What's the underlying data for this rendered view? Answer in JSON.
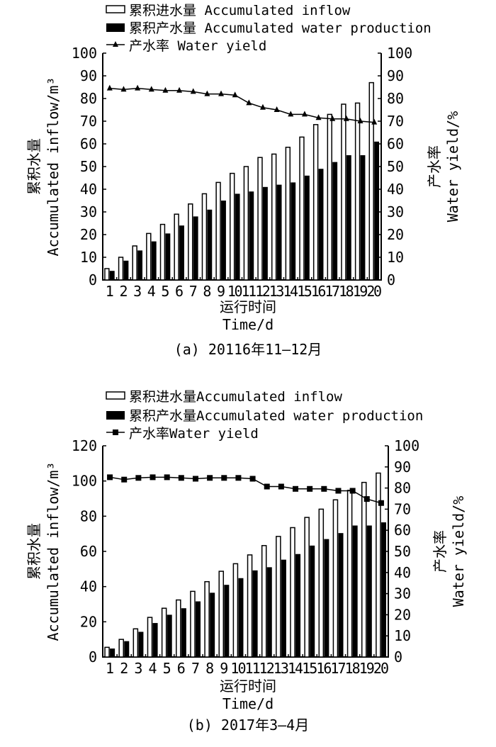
{
  "chart_data": [
    {
      "type": "bar",
      "caption": "(a) 20116年11—12月",
      "legend": [
        "累积进水量 Accumulated inflow",
        "累积产水量 Accumulated water production",
        "产水率 Water yield"
      ],
      "ylabel_cn": "累积水量",
      "ylabel": "Accumulated inflow/m³",
      "y2label_cn": "产水率",
      "y2label": "Water yield/%",
      "xlabel_cn": "运行时间",
      "xlabel": "Time/d",
      "ylim": [
        0,
        100
      ],
      "yticks": [
        "0",
        "10",
        "20",
        "30",
        "40",
        "50",
        "60",
        "70",
        "80",
        "90",
        "100"
      ],
      "y2lim": [
        0,
        100
      ],
      "y2ticks": [
        "0",
        "10",
        "20",
        "30",
        "40",
        "50",
        "60",
        "70",
        "80",
        "90",
        "100"
      ],
      "categories": [
        "1",
        "2",
        "3",
        "4",
        "5",
        "6",
        "7",
        "8",
        "9",
        "10",
        "11",
        "12",
        "13",
        "14",
        "15",
        "16",
        "17",
        "18",
        "19",
        "20"
      ],
      "series": [
        {
          "name": "累积进水量 Accumulated inflow",
          "type": "bar",
          "color": "#ffffff",
          "values": [
            5,
            10,
            15,
            20.5,
            24.5,
            29,
            33.5,
            38,
            43,
            47,
            50,
            54,
            55.5,
            58.5,
            63,
            68.5,
            73,
            77.5,
            78,
            87
          ]
        },
        {
          "name": "累积产水量 Accumulated water production",
          "type": "bar",
          "color": "#000000",
          "values": [
            4,
            8.5,
            13,
            17,
            20.5,
            24,
            28,
            31,
            35,
            38,
            39,
            41,
            42,
            43,
            46,
            49,
            52,
            55,
            55,
            61
          ]
        },
        {
          "name": "产水率 Water yield",
          "type": "line",
          "marker": "triangle",
          "axis": "right",
          "values": [
            84.5,
            84,
            84.5,
            84,
            83.5,
            83.5,
            83,
            82,
            82,
            81.5,
            78,
            76,
            75,
            73,
            73,
            71.5,
            71,
            71,
            70,
            69.5
          ]
        }
      ]
    },
    {
      "type": "bar",
      "caption": "(b) 2017年3—4月",
      "legend": [
        "累积进水量Accumulated inflow",
        "累积产水量Accumulated water production",
        "产水率Water yield"
      ],
      "ylabel_cn": "累积水量",
      "ylabel": "Accumulated inflow/m³",
      "y2label_cn": "产水率",
      "y2label": "Water yield/%",
      "xlabel_cn": "运行时间",
      "xlabel": "Time/d",
      "ylim": [
        0,
        120
      ],
      "yticks": [
        "0",
        "20",
        "40",
        "60",
        "80",
        "100",
        "120"
      ],
      "y2lim": [
        0,
        100
      ],
      "y2ticks": [
        "0",
        "10",
        "20",
        "30",
        "40",
        "50",
        "60",
        "70",
        "80",
        "90",
        "100"
      ],
      "categories": [
        "1",
        "2",
        "3",
        "4",
        "5",
        "6",
        "7",
        "8",
        "9",
        "10",
        "11",
        "12",
        "13",
        "14",
        "15",
        "16",
        "17",
        "18",
        "19",
        "20"
      ],
      "series": [
        {
          "name": "累积进水量Accumulated inflow",
          "type": "bar",
          "color": "#ffffff",
          "values": [
            5.5,
            10,
            16,
            22.5,
            27.7,
            32.4,
            37.3,
            42.8,
            48.7,
            53,
            58,
            63.3,
            68.5,
            73.5,
            79.3,
            84,
            89.3,
            94.7,
            99.2,
            104.5
          ]
        },
        {
          "name": "累积产水量Accumulated water production",
          "type": "bar",
          "color": "#000000",
          "values": [
            4.8,
            9,
            14.3,
            19.3,
            24,
            27.7,
            31.6,
            36.5,
            41,
            44.8,
            49.2,
            51,
            55.3,
            58.5,
            63.3,
            67,
            70.4,
            74.7,
            74.7,
            76.5
          ]
        },
        {
          "name": "产水率Water yield",
          "type": "line",
          "marker": "square",
          "axis": "right",
          "values": [
            85.1,
            84,
            84.8,
            85.1,
            85.1,
            84.8,
            84.4,
            84.8,
            84.8,
            84.8,
            84.4,
            80.7,
            80.7,
            79.6,
            79.6,
            79.6,
            78.7,
            78.7,
            74.8,
            72.9
          ]
        }
      ]
    }
  ]
}
